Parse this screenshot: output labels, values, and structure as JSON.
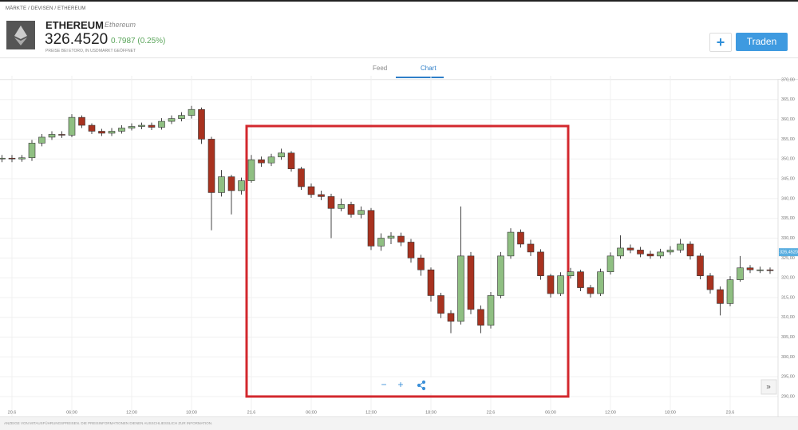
{
  "breadcrumb": [
    "MÄRKTE",
    "DEVISEN",
    "ETHEREUM"
  ],
  "header": {
    "symbol": "ETHEREUM",
    "name": "Ethereum",
    "price": "326.4520",
    "change": "0.7987 (0.25%)",
    "note": "PREISE BEI ETORO, IN USD",
    "market_status": "MARKT GEÖFFNET"
  },
  "buttons": {
    "add": "+",
    "trade": "Traden"
  },
  "tabs": [
    "Feed",
    "Chart"
  ],
  "chart_data": {
    "type": "candlestick",
    "x": [
      -1,
      0,
      1,
      2,
      3,
      4,
      5,
      6,
      7,
      8,
      9,
      10,
      11,
      12,
      13,
      14,
      15,
      16,
      17,
      18,
      19,
      20,
      21,
      22,
      23,
      24,
      25,
      26,
      27,
      28,
      29,
      30,
      31,
      32,
      33,
      34,
      35,
      36,
      37,
      38,
      39,
      40,
      41,
      42,
      43,
      44,
      45,
      46,
      47,
      48,
      49,
      50,
      51,
      52,
      53,
      54,
      55,
      56,
      57,
      58,
      59,
      60,
      61,
      62,
      63,
      64,
      65,
      66,
      67,
      68,
      69,
      70,
      71,
      72,
      73,
      74,
      75,
      76
    ],
    "open": [
      350.0,
      350.2,
      350.0,
      350.3,
      354.0,
      355.5,
      356.2,
      356.0,
      360.5,
      358.5,
      357.0,
      356.5,
      357.0,
      357.8,
      358.2,
      358.5,
      358.0,
      359.5,
      360.2,
      361.0,
      362.5,
      355.0,
      341.5,
      345.5,
      342.0,
      344.5,
      349.8,
      349.0,
      350.5,
      351.5,
      347.5,
      343.0,
      341.0,
      340.5,
      337.5,
      338.5,
      336.0,
      337.0,
      328.0,
      330.0,
      330.5,
      329.0,
      325.0,
      322.0,
      315.5,
      311.0,
      309.0,
      325.5,
      312.0,
      308.0,
      315.5,
      325.5,
      331.5,
      328.5,
      326.5,
      320.5,
      316.0,
      320.5,
      321.5,
      317.5,
      316.0,
      321.5,
      325.5,
      327.5,
      327.0,
      326.0,
      325.5,
      326.5,
      327.0,
      328.5,
      325.5,
      320.5,
      317.0,
      313.5,
      319.5,
      322.5,
      322.0,
      322.0
    ],
    "high": [
      351.0,
      351.0,
      351.0,
      354.8,
      356.3,
      357.0,
      357.0,
      361.3,
      361.0,
      359.0,
      357.6,
      357.8,
      358.5,
      359.0,
      359.2,
      359.2,
      360.3,
      361.0,
      361.8,
      363.4,
      363.0,
      355.6,
      347.2,
      346.0,
      345.3,
      351.0,
      350.6,
      351.3,
      352.6,
      352.0,
      348.0,
      343.8,
      342.0,
      341.2,
      340.0,
      339.2,
      338.0,
      337.6,
      331.2,
      331.5,
      331.4,
      329.8,
      325.8,
      322.6,
      316.2,
      311.8,
      338.0,
      326.5,
      313.0,
      316.4,
      326.5,
      332.5,
      332.2,
      329.6,
      327.2,
      321.0,
      321.4,
      322.5,
      322.0,
      318.2,
      322.3,
      326.4,
      330.7,
      328.4,
      327.8,
      326.8,
      327.3,
      328.0,
      329.8,
      329.2,
      326.2,
      321.2,
      317.8,
      320.4,
      325.5,
      323.2,
      322.8,
      322.6
    ],
    "low": [
      349.2,
      349.2,
      349.3,
      349.5,
      353.2,
      354.8,
      355.3,
      355.5,
      357.8,
      356.3,
      355.8,
      355.8,
      356.4,
      357.2,
      357.5,
      357.3,
      357.4,
      358.8,
      359.5,
      360.2,
      353.8,
      332.0,
      340.5,
      336.0,
      341.0,
      344.0,
      348.0,
      348.2,
      349.8,
      346.8,
      342.2,
      340.2,
      339.6,
      330.0,
      336.8,
      335.2,
      335.0,
      327.0,
      326.8,
      328.5,
      328.0,
      323.8,
      320.5,
      314.0,
      309.8,
      306.0,
      308.2,
      310.8,
      306.0,
      307.2,
      314.8,
      324.8,
      327.6,
      325.5,
      319.5,
      315.0,
      315.4,
      319.8,
      316.6,
      315.0,
      315.4,
      320.8,
      324.8,
      326.2,
      325.2,
      324.8,
      324.9,
      325.8,
      326.3,
      324.6,
      319.6,
      316.0,
      310.5,
      312.8,
      319.0,
      321.2,
      321.2,
      321.0
    ],
    "close": [
      350.2,
      350.0,
      350.3,
      354.0,
      355.5,
      356.2,
      356.0,
      360.5,
      358.5,
      357.0,
      356.5,
      357.0,
      357.8,
      358.2,
      358.5,
      358.0,
      359.5,
      360.2,
      361.0,
      362.5,
      355.0,
      341.5,
      345.5,
      342.0,
      344.5,
      349.8,
      349.0,
      350.5,
      351.5,
      347.5,
      343.0,
      341.0,
      340.5,
      337.5,
      338.5,
      336.0,
      337.0,
      328.0,
      330.0,
      330.5,
      329.0,
      325.0,
      322.0,
      315.5,
      311.0,
      309.0,
      325.5,
      312.0,
      308.0,
      315.5,
      325.5,
      331.5,
      328.5,
      326.5,
      320.5,
      316.0,
      320.5,
      321.5,
      317.5,
      316.0,
      321.5,
      325.5,
      327.5,
      327.0,
      326.0,
      325.5,
      326.5,
      327.0,
      328.5,
      325.5,
      320.5,
      317.0,
      313.5,
      319.5,
      322.5,
      322.0,
      322.0,
      321.8
    ],
    "up_color": "#8fbf82",
    "down_color": "#a8321f",
    "xlim": [
      -1.2,
      76.8
    ],
    "xticks": [
      {
        "value": 0,
        "label": "20.6"
      },
      {
        "value": 6,
        "label": "06:00"
      },
      {
        "value": 12,
        "label": "12:00"
      },
      {
        "value": 18,
        "label": "18:00"
      },
      {
        "value": 24,
        "label": "21.6"
      },
      {
        "value": 30,
        "label": "06:00"
      },
      {
        "value": 36,
        "label": "12:00"
      },
      {
        "value": 42,
        "label": "18:00"
      },
      {
        "value": 48,
        "label": "22.6"
      },
      {
        "value": 54,
        "label": "06:00"
      },
      {
        "value": 60,
        "label": "12:00"
      },
      {
        "value": 66,
        "label": "18:00"
      },
      {
        "value": 72,
        "label": "23.6"
      }
    ],
    "ylim": [
      288,
      371
    ],
    "yticks": [
      {
        "value": 290,
        "label": "290,00"
      },
      {
        "value": 295,
        "label": "295,00"
      },
      {
        "value": 300,
        "label": "300,00"
      },
      {
        "value": 305,
        "label": "305,00"
      },
      {
        "value": 310,
        "label": "310,00"
      },
      {
        "value": 315,
        "label": "315,00"
      },
      {
        "value": 320,
        "label": "320,00"
      },
      {
        "value": 325,
        "label": "325,00"
      },
      {
        "value": 330,
        "label": "330,00"
      },
      {
        "value": 335,
        "label": "335,00"
      },
      {
        "value": 340,
        "label": "340,00"
      },
      {
        "value": 345,
        "label": "345,00"
      },
      {
        "value": 350,
        "label": "350,00"
      },
      {
        "value": 355,
        "label": "355,00"
      },
      {
        "value": 360,
        "label": "360,00"
      },
      {
        "value": 365,
        "label": "365,00"
      },
      {
        "value": 370,
        "label": "370,00"
      }
    ],
    "current_price": {
      "value": 326.452,
      "label": "326,4520"
    },
    "grid": true
  },
  "footer": "ANZEIGE VON MITAUSFÜHRUNGSPREISEN. DIE PREISINFORMATIONEN DIENEN AUSSCHLIESSLICH ZUR INFORMATION."
}
